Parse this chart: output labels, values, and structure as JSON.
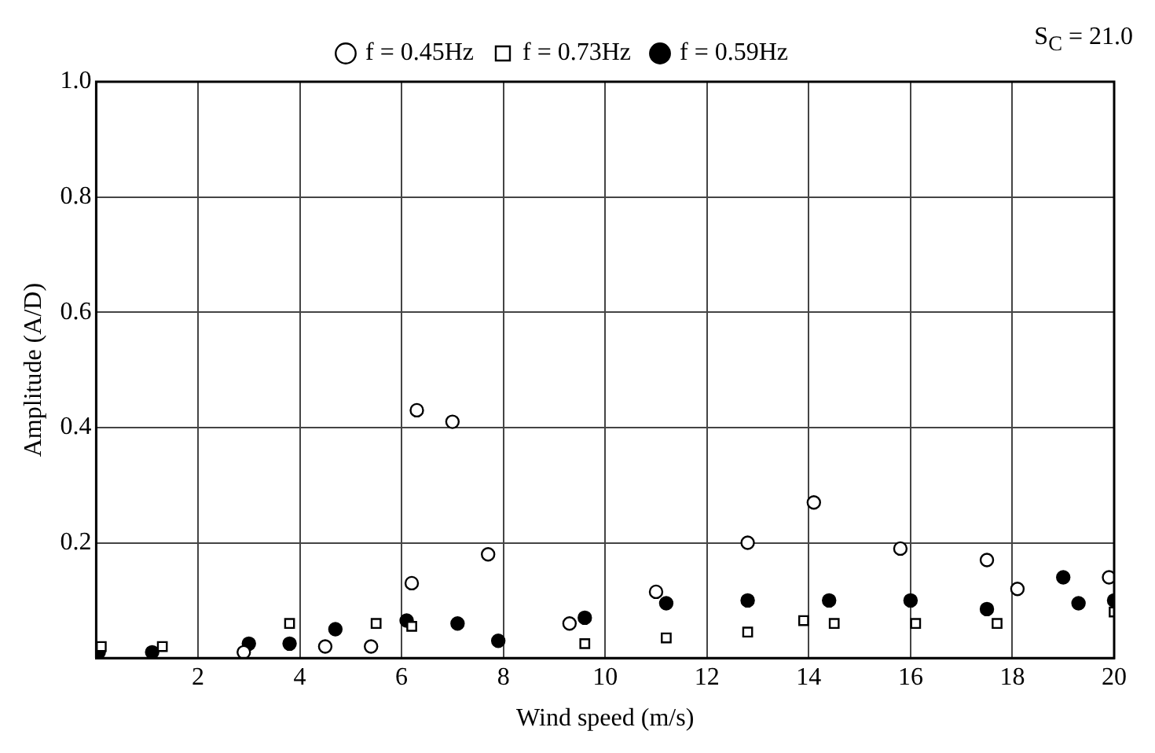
{
  "chart_data": {
    "type": "scatter",
    "xlabel": "Wind speed (m/s)",
    "ylabel": "Amplitude (A/D)",
    "annotations": [
      "S$_{C}$ = 21.0"
    ],
    "series": [
      {
        "name": "f = 0.45Hz",
        "color": "#000000",
        "marker": "circle",
        "x": [
          2.9,
          4.5,
          5.4,
          6.2,
          6.3,
          7.0,
          7.7,
          9.3,
          11.0,
          12.8,
          14.1,
          15.8,
          17.5,
          18.1,
          19.9
        ],
        "values": [
          0.01,
          0.02,
          0.02,
          0.13,
          0.43,
          0.41,
          0.18,
          0.06,
          0.115,
          0.2,
          0.27,
          0.19,
          0.17,
          0.12,
          0.14
        ]
      },
      {
        "name": "f = 0.59Hz",
        "color": "#000000",
        "marker": "circle",
        "x": [
          0.05,
          1.1,
          3.0,
          3.8,
          4.7,
          6.1,
          7.1,
          7.9,
          9.6,
          11.2,
          12.8,
          14.4,
          16.0,
          17.5,
          19.0,
          19.3,
          20.0
        ],
        "values": [
          0.01,
          0.01,
          0.025,
          0.025,
          0.05,
          0.065,
          0.06,
          0.03,
          0.07,
          0.095,
          0.1,
          0.1,
          0.1,
          0.085,
          0.14,
          0.095,
          0.1
        ]
      },
      {
        "name": "f = 0.73Hz",
        "color": "#000000",
        "marker": "square",
        "x": [
          0.1,
          1.3,
          3.8,
          5.5,
          6.2,
          9.6,
          11.2,
          12.8,
          13.9,
          14.5,
          16.1,
          17.7,
          20.0
        ],
        "values": [
          0.02,
          0.02,
          0.06,
          0.06,
          0.055,
          0.025,
          0.035,
          0.045,
          0.065,
          0.06,
          0.06,
          0.06,
          0.08
        ]
      }
    ],
    "xlim": [
      0,
      20
    ],
    "xticks": [
      {
        "value": 0,
        "label": null
      },
      2,
      4,
      6,
      8,
      10,
      12,
      14,
      16,
      18,
      20
    ],
    "ylim": [
      0,
      1
    ],
    "yticks": [
      {
        "value": 0,
        "label": null
      },
      0.2,
      0.4,
      0.6,
      0.8,
      {
        "value": 1,
        "label": "1.0"
      }
    ],
    "grid": true,
    "legend": "top"
  }
}
